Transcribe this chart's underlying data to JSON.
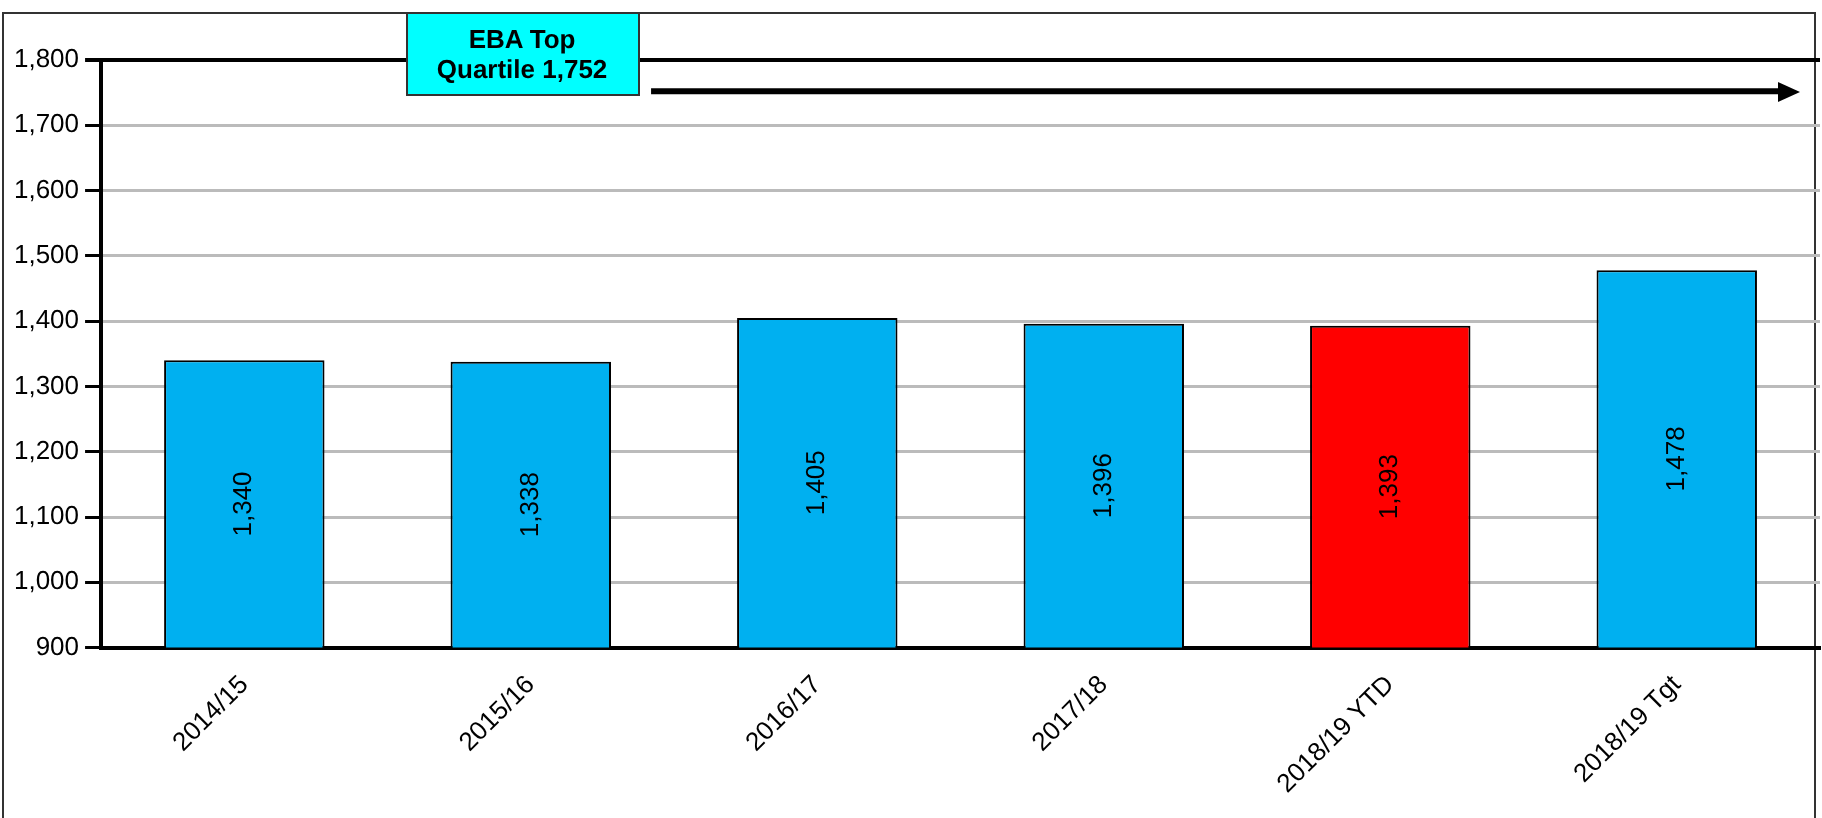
{
  "chart_data": {
    "type": "bar",
    "categories": [
      "2014/15",
      "2015/16",
      "2016/17",
      "2017/18",
      "2018/19 YTD",
      "2018/19 Tgt"
    ],
    "values": [
      1340,
      1338,
      1405,
      1396,
      1393,
      1478
    ],
    "colors": [
      "#00b0f0",
      "#00b0f0",
      "#00b0f0",
      "#00b0f0",
      "#ff0000",
      "#00b0f0"
    ],
    "ylim": [
      900,
      1800
    ],
    "yticks": [
      {
        "value": 900,
        "label": "900"
      },
      {
        "value": 1000,
        "label": "1,000"
      },
      {
        "value": 1100,
        "label": "1,100"
      },
      {
        "value": 1200,
        "label": "1,200"
      },
      {
        "value": 1300,
        "label": "1,300"
      },
      {
        "value": 1400,
        "label": "1,400"
      },
      {
        "value": 1500,
        "label": "1,500"
      },
      {
        "value": 1600,
        "label": "1,600"
      },
      {
        "value": 1700,
        "label": "1,700"
      },
      {
        "value": 1800,
        "label": "1,800"
      }
    ],
    "value_labels": [
      "1,340",
      "1,338",
      "1,405",
      "1,396",
      "1,393",
      "1,478"
    ],
    "grid": "y",
    "legend": false,
    "ref_lines": [
      {
        "axis": "y",
        "value": 1752,
        "label": "EBA Top Quartile 1,752",
        "color": "#000000"
      }
    ]
  }
}
